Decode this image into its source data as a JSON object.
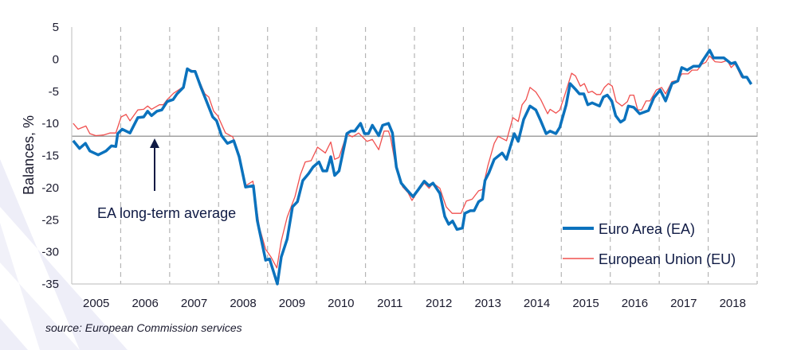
{
  "chart_data": {
    "type": "line",
    "title": "",
    "xlabel": "",
    "ylabel": "Balances, %",
    "ylim": [
      -35,
      5
    ],
    "yticks": [
      5,
      0,
      -5,
      -10,
      -15,
      -20,
      -25,
      -30,
      -35
    ],
    "xlim": [
      2005,
      2019
    ],
    "xtick_labels": [
      "2005",
      "2006",
      "2007",
      "2008",
      "2009",
      "2010",
      "2011",
      "2012",
      "2013",
      "2014",
      "2015",
      "2016",
      "2017",
      "2018"
    ],
    "grid": "vertical dashed at year boundaries",
    "reference_line": {
      "value": -12,
      "label": "EA long-term average"
    },
    "legend_position": "bottom-right",
    "series": [
      {
        "name": "Euro Area (EA)",
        "color": "#0b72bd",
        "points": [
          [
            2005.03,
            -12.7
          ],
          [
            2005.16,
            -13.9
          ],
          [
            2005.28,
            -13.1
          ],
          [
            2005.37,
            -14.3
          ],
          [
            2005.54,
            -14.9
          ],
          [
            2005.7,
            -14.3
          ],
          [
            2005.81,
            -13.5
          ],
          [
            2005.9,
            -13.6
          ],
          [
            2005.94,
            -11.6
          ],
          [
            2006.03,
            -10.9
          ],
          [
            2006.19,
            -11.5
          ],
          [
            2006.35,
            -9.1
          ],
          [
            2006.47,
            -9.0
          ],
          [
            2006.55,
            -8.1
          ],
          [
            2006.63,
            -8.8
          ],
          [
            2006.74,
            -8.1
          ],
          [
            2006.84,
            -7.9
          ],
          [
            2006.95,
            -6.6
          ],
          [
            2007.07,
            -6.3
          ],
          [
            2007.15,
            -5.4
          ],
          [
            2007.28,
            -4.4
          ],
          [
            2007.36,
            -1.5
          ],
          [
            2007.44,
            -1.9
          ],
          [
            2007.52,
            -1.9
          ],
          [
            2007.64,
            -4.4
          ],
          [
            2007.74,
            -6.3
          ],
          [
            2007.88,
            -9.0
          ],
          [
            2007.96,
            -9.6
          ],
          [
            2008.06,
            -11.9
          ],
          [
            2008.18,
            -13.1
          ],
          [
            2008.31,
            -12.7
          ],
          [
            2008.42,
            -15.2
          ],
          [
            2008.55,
            -19.9
          ],
          [
            2008.71,
            -19.7
          ],
          [
            2008.79,
            -25.1
          ],
          [
            2008.96,
            -31.3
          ],
          [
            2009.04,
            -31.1
          ],
          [
            2009.2,
            -35.0
          ],
          [
            2009.28,
            -30.8
          ],
          [
            2009.4,
            -28.0
          ],
          [
            2009.51,
            -23.0
          ],
          [
            2009.61,
            -22.2
          ],
          [
            2009.72,
            -18.9
          ],
          [
            2009.84,
            -17.8
          ],
          [
            2009.93,
            -16.8
          ],
          [
            2010.05,
            -16.0
          ],
          [
            2010.13,
            -17.4
          ],
          [
            2010.21,
            -17.4
          ],
          [
            2010.29,
            -15.2
          ],
          [
            2010.37,
            -18.1
          ],
          [
            2010.46,
            -17.4
          ],
          [
            2010.62,
            -11.6
          ],
          [
            2010.7,
            -11.2
          ],
          [
            2010.78,
            -11.2
          ],
          [
            2010.9,
            -10.0
          ],
          [
            2010.98,
            -11.6
          ],
          [
            2011.06,
            -11.6
          ],
          [
            2011.14,
            -10.3
          ],
          [
            2011.27,
            -11.9
          ],
          [
            2011.35,
            -10.3
          ],
          [
            2011.47,
            -10.0
          ],
          [
            2011.55,
            -11.5
          ],
          [
            2011.63,
            -16.8
          ],
          [
            2011.73,
            -19.3
          ],
          [
            2011.84,
            -20.3
          ],
          [
            2011.97,
            -21.4
          ],
          [
            2012.08,
            -20.3
          ],
          [
            2012.2,
            -19.0
          ],
          [
            2012.3,
            -19.7
          ],
          [
            2012.38,
            -19.3
          ],
          [
            2012.52,
            -20.9
          ],
          [
            2012.62,
            -24.5
          ],
          [
            2012.7,
            -25.7
          ],
          [
            2012.78,
            -25.2
          ],
          [
            2012.87,
            -26.5
          ],
          [
            2012.98,
            -26.3
          ],
          [
            2013.03,
            -24.0
          ],
          [
            2013.14,
            -23.6
          ],
          [
            2013.22,
            -23.6
          ],
          [
            2013.31,
            -22.2
          ],
          [
            2013.39,
            -21.8
          ],
          [
            2013.44,
            -18.9
          ],
          [
            2013.52,
            -17.7
          ],
          [
            2013.63,
            -15.6
          ],
          [
            2013.79,
            -14.6
          ],
          [
            2013.88,
            -15.6
          ],
          [
            2014.04,
            -11.6
          ],
          [
            2014.12,
            -12.8
          ],
          [
            2014.23,
            -9.4
          ],
          [
            2014.36,
            -7.3
          ],
          [
            2014.48,
            -7.9
          ],
          [
            2014.58,
            -9.6
          ],
          [
            2014.69,
            -11.6
          ],
          [
            2014.77,
            -11.2
          ],
          [
            2014.89,
            -11.6
          ],
          [
            2014.97,
            -10.6
          ],
          [
            2015.1,
            -7.1
          ],
          [
            2015.18,
            -3.8
          ],
          [
            2015.29,
            -4.7
          ],
          [
            2015.37,
            -5.4
          ],
          [
            2015.46,
            -5.4
          ],
          [
            2015.54,
            -7.1
          ],
          [
            2015.63,
            -6.8
          ],
          [
            2015.78,
            -7.3
          ],
          [
            2015.86,
            -5.9
          ],
          [
            2015.94,
            -5.6
          ],
          [
            2016.03,
            -6.5
          ],
          [
            2016.11,
            -8.8
          ],
          [
            2016.21,
            -9.8
          ],
          [
            2016.29,
            -9.4
          ],
          [
            2016.37,
            -7.3
          ],
          [
            2016.48,
            -7.5
          ],
          [
            2016.6,
            -8.5
          ],
          [
            2016.78,
            -8.0
          ],
          [
            2016.89,
            -6.0
          ],
          [
            2017.02,
            -4.8
          ],
          [
            2017.13,
            -6.5
          ],
          [
            2017.26,
            -3.8
          ],
          [
            2017.38,
            -3.4
          ],
          [
            2017.46,
            -1.3
          ],
          [
            2017.57,
            -1.7
          ],
          [
            2017.7,
            -1.1
          ],
          [
            2017.82,
            -1.1
          ],
          [
            2017.9,
            -0.1
          ],
          [
            2018.03,
            1.4
          ],
          [
            2018.11,
            0.2
          ],
          [
            2018.24,
            0.2
          ],
          [
            2018.32,
            0.2
          ],
          [
            2018.47,
            -0.7
          ],
          [
            2018.55,
            -0.5
          ],
          [
            2018.71,
            -2.8
          ],
          [
            2018.79,
            -2.8
          ],
          [
            2018.88,
            -3.9
          ]
        ]
      },
      {
        "name": "European Union (EU)",
        "color": "#f0504f",
        "points": [
          [
            2005.03,
            -10.0
          ],
          [
            2005.13,
            -10.9
          ],
          [
            2005.29,
            -10.4
          ],
          [
            2005.37,
            -11.6
          ],
          [
            2005.49,
            -11.9
          ],
          [
            2005.65,
            -11.8
          ],
          [
            2005.78,
            -11.5
          ],
          [
            2005.9,
            -11.5
          ],
          [
            2006.01,
            -9.0
          ],
          [
            2006.11,
            -8.6
          ],
          [
            2006.19,
            -9.6
          ],
          [
            2006.35,
            -7.9
          ],
          [
            2006.47,
            -7.8
          ],
          [
            2006.55,
            -7.3
          ],
          [
            2006.63,
            -7.8
          ],
          [
            2006.79,
            -7.1
          ],
          [
            2006.87,
            -7.1
          ],
          [
            2006.95,
            -6.3
          ],
          [
            2007.08,
            -5.3
          ],
          [
            2007.28,
            -4.3
          ],
          [
            2007.36,
            -1.5
          ],
          [
            2007.52,
            -1.9
          ],
          [
            2007.72,
            -5.4
          ],
          [
            2007.8,
            -5.9
          ],
          [
            2007.9,
            -8.1
          ],
          [
            2007.98,
            -8.8
          ],
          [
            2008.14,
            -11.5
          ],
          [
            2008.29,
            -12.1
          ],
          [
            2008.42,
            -15.2
          ],
          [
            2008.55,
            -19.7
          ],
          [
            2008.7,
            -19.0
          ],
          [
            2008.83,
            -26.1
          ],
          [
            2008.96,
            -29.6
          ],
          [
            2009.07,
            -30.8
          ],
          [
            2009.19,
            -32.5
          ],
          [
            2009.28,
            -28.3
          ],
          [
            2009.4,
            -24.6
          ],
          [
            2009.56,
            -21.4
          ],
          [
            2009.67,
            -18.0
          ],
          [
            2009.77,
            -16.0
          ],
          [
            2009.89,
            -15.8
          ],
          [
            2010.02,
            -13.7
          ],
          [
            2010.18,
            -14.6
          ],
          [
            2010.29,
            -12.9
          ],
          [
            2010.37,
            -15.6
          ],
          [
            2010.46,
            -15.3
          ],
          [
            2010.62,
            -11.6
          ],
          [
            2010.73,
            -12.1
          ],
          [
            2010.86,
            -11.5
          ],
          [
            2011.03,
            -12.8
          ],
          [
            2011.14,
            -12.5
          ],
          [
            2011.27,
            -14.1
          ],
          [
            2011.38,
            -11.2
          ],
          [
            2011.47,
            -11.2
          ],
          [
            2011.51,
            -12.1
          ],
          [
            2011.63,
            -17.2
          ],
          [
            2011.76,
            -19.9
          ],
          [
            2011.87,
            -20.8
          ],
          [
            2011.95,
            -22.0
          ],
          [
            2012.05,
            -20.8
          ],
          [
            2012.2,
            -19.3
          ],
          [
            2012.3,
            -20.1
          ],
          [
            2012.38,
            -19.3
          ],
          [
            2012.52,
            -20.1
          ],
          [
            2012.65,
            -23.0
          ],
          [
            2012.77,
            -24.0
          ],
          [
            2012.87,
            -24.0
          ],
          [
            2012.95,
            -24.0
          ],
          [
            2013.06,
            -22.1
          ],
          [
            2013.18,
            -21.8
          ],
          [
            2013.31,
            -20.5
          ],
          [
            2013.39,
            -20.3
          ],
          [
            2013.5,
            -16.6
          ],
          [
            2013.63,
            -13.1
          ],
          [
            2013.71,
            -12.0
          ],
          [
            2013.88,
            -12.7
          ],
          [
            2014.01,
            -9.1
          ],
          [
            2014.12,
            -9.7
          ],
          [
            2014.2,
            -7.1
          ],
          [
            2014.28,
            -6.3
          ],
          [
            2014.36,
            -4.4
          ],
          [
            2014.48,
            -5.1
          ],
          [
            2014.58,
            -6.3
          ],
          [
            2014.72,
            -8.5
          ],
          [
            2014.77,
            -7.8
          ],
          [
            2014.89,
            -8.4
          ],
          [
            2014.97,
            -7.9
          ],
          [
            2015.07,
            -5.6
          ],
          [
            2015.21,
            -2.2
          ],
          [
            2015.29,
            -2.6
          ],
          [
            2015.39,
            -4.2
          ],
          [
            2015.47,
            -3.8
          ],
          [
            2015.55,
            -5.2
          ],
          [
            2015.63,
            -5.0
          ],
          [
            2015.72,
            -5.5
          ],
          [
            2015.8,
            -5.5
          ],
          [
            2015.88,
            -4.4
          ],
          [
            2015.96,
            -3.8
          ],
          [
            2016.04,
            -4.2
          ],
          [
            2016.12,
            -6.6
          ],
          [
            2016.24,
            -7.3
          ],
          [
            2016.35,
            -6.6
          ],
          [
            2016.4,
            -5.6
          ],
          [
            2016.48,
            -5.6
          ],
          [
            2016.56,
            -7.9
          ],
          [
            2016.64,
            -7.9
          ],
          [
            2016.73,
            -6.5
          ],
          [
            2016.81,
            -6.5
          ],
          [
            2016.94,
            -4.8
          ],
          [
            2017.05,
            -4.4
          ],
          [
            2017.13,
            -5.4
          ],
          [
            2017.26,
            -3.5
          ],
          [
            2017.38,
            -3.3
          ],
          [
            2017.46,
            -2.3
          ],
          [
            2017.59,
            -2.3
          ],
          [
            2017.67,
            -1.7
          ],
          [
            2017.78,
            -1.7
          ],
          [
            2017.87,
            -0.8
          ],
          [
            2017.95,
            -0.5
          ],
          [
            2018.03,
            0.5
          ],
          [
            2018.14,
            -0.4
          ],
          [
            2018.27,
            -0.5
          ],
          [
            2018.39,
            -0.2
          ],
          [
            2018.47,
            -1.3
          ],
          [
            2018.55,
            -0.7
          ],
          [
            2018.68,
            -2.8
          ],
          [
            2018.76,
            -2.7
          ],
          [
            2018.88,
            -3.8
          ]
        ]
      }
    ]
  },
  "source": "source: European Commission services"
}
